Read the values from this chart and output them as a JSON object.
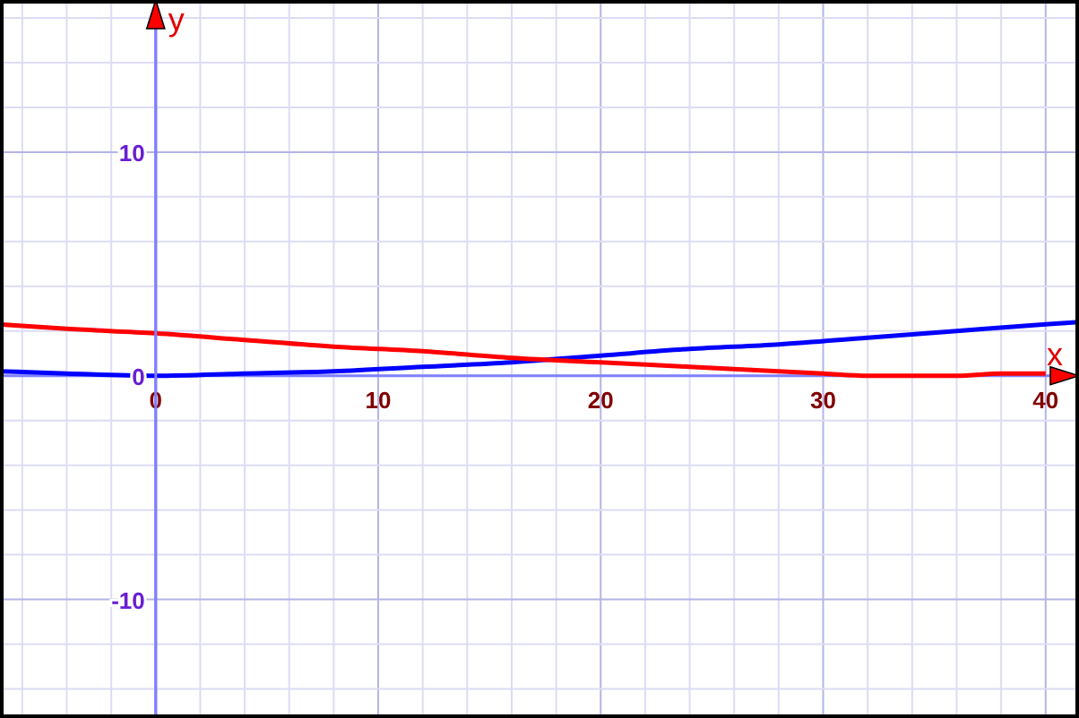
{
  "chart_data": {
    "type": "line",
    "xlabel": "x",
    "ylabel": "y",
    "xlim": [
      -7,
      41.5
    ],
    "ylim": [
      -15.3,
      16.8
    ],
    "xticks": [
      {
        "value": -6,
        "label": null
      },
      {
        "value": -4,
        "label": null
      },
      {
        "value": -2,
        "label": null
      },
      0,
      {
        "value": 2,
        "label": null
      },
      {
        "value": 4,
        "label": null
      },
      {
        "value": 6,
        "label": null
      },
      {
        "value": 8,
        "label": null
      },
      10,
      {
        "value": 12,
        "label": null
      },
      {
        "value": 14,
        "label": null
      },
      {
        "value": 16,
        "label": null
      },
      {
        "value": 18,
        "label": null
      },
      20,
      {
        "value": 22,
        "label": null
      },
      {
        "value": 24,
        "label": null
      },
      {
        "value": 26,
        "label": null
      },
      {
        "value": 28,
        "label": null
      },
      30,
      {
        "value": 32,
        "label": null
      },
      {
        "value": 34,
        "label": null
      },
      {
        "value": 36,
        "label": null
      },
      {
        "value": 38,
        "label": null
      },
      40
    ],
    "yticks": [
      {
        "value": -14,
        "label": null
      },
      {
        "value": -12,
        "label": null
      },
      -10,
      {
        "value": -8,
        "label": null
      },
      {
        "value": -6,
        "label": null
      },
      {
        "value": -4,
        "label": null
      },
      {
        "value": -2,
        "label": null
      },
      0,
      {
        "value": 2,
        "label": null
      },
      {
        "value": 4,
        "label": null
      },
      {
        "value": 6,
        "label": null
      },
      {
        "value": 8,
        "label": null
      },
      10,
      {
        "value": 12,
        "label": null
      },
      {
        "value": 14,
        "label": null
      },
      {
        "value": 16,
        "label": null
      }
    ],
    "grid": true,
    "marker": "none",
    "line_style": "solid",
    "series": [
      {
        "color": "#0000ff",
        "x": [
          -7,
          -4,
          0,
          4,
          8,
          12,
          16,
          20,
          24,
          28,
          32,
          36,
          40,
          41.5
        ],
        "values": [
          0.2,
          0.1,
          0,
          0.1,
          0.2,
          0.4,
          0.6,
          0.9,
          1.2,
          1.4,
          1.7,
          2,
          2.3,
          2.4
        ]
      },
      {
        "color": "#ff0000",
        "x": [
          -7,
          -4,
          0,
          4,
          8,
          12,
          16,
          20,
          24,
          28,
          30,
          32,
          34,
          36,
          38,
          40
        ],
        "values": [
          2.3,
          2.1,
          1.9,
          1.6,
          1.3,
          1.1,
          0.8,
          0.6,
          0.4,
          0.2,
          0.1,
          0,
          0,
          0,
          0.1,
          0.1
        ]
      }
    ]
  }
}
